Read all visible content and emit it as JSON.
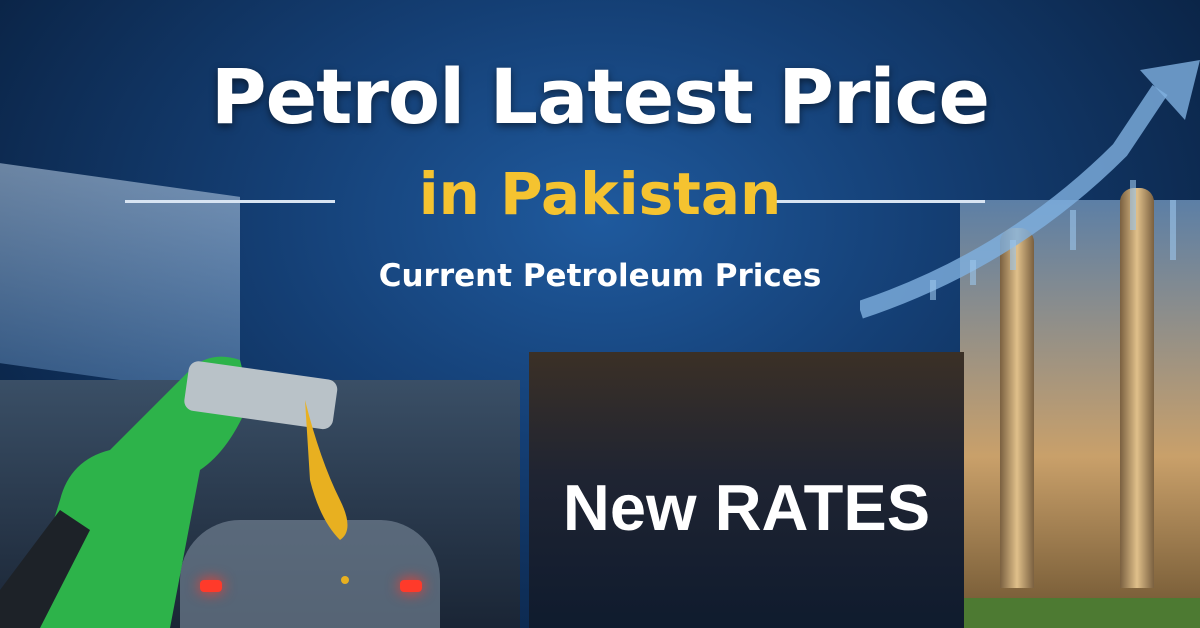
{
  "headline": {
    "title": "Petrol Latest Price",
    "subtitle": "in Pakistan",
    "tagline": "Current Petroleum Prices"
  },
  "overlay": {
    "label": "New RATES"
  },
  "colors": {
    "title": "#ffffff",
    "subtitle": "#f5c330",
    "background": "#143e73",
    "nozzle": "#2db34a"
  }
}
